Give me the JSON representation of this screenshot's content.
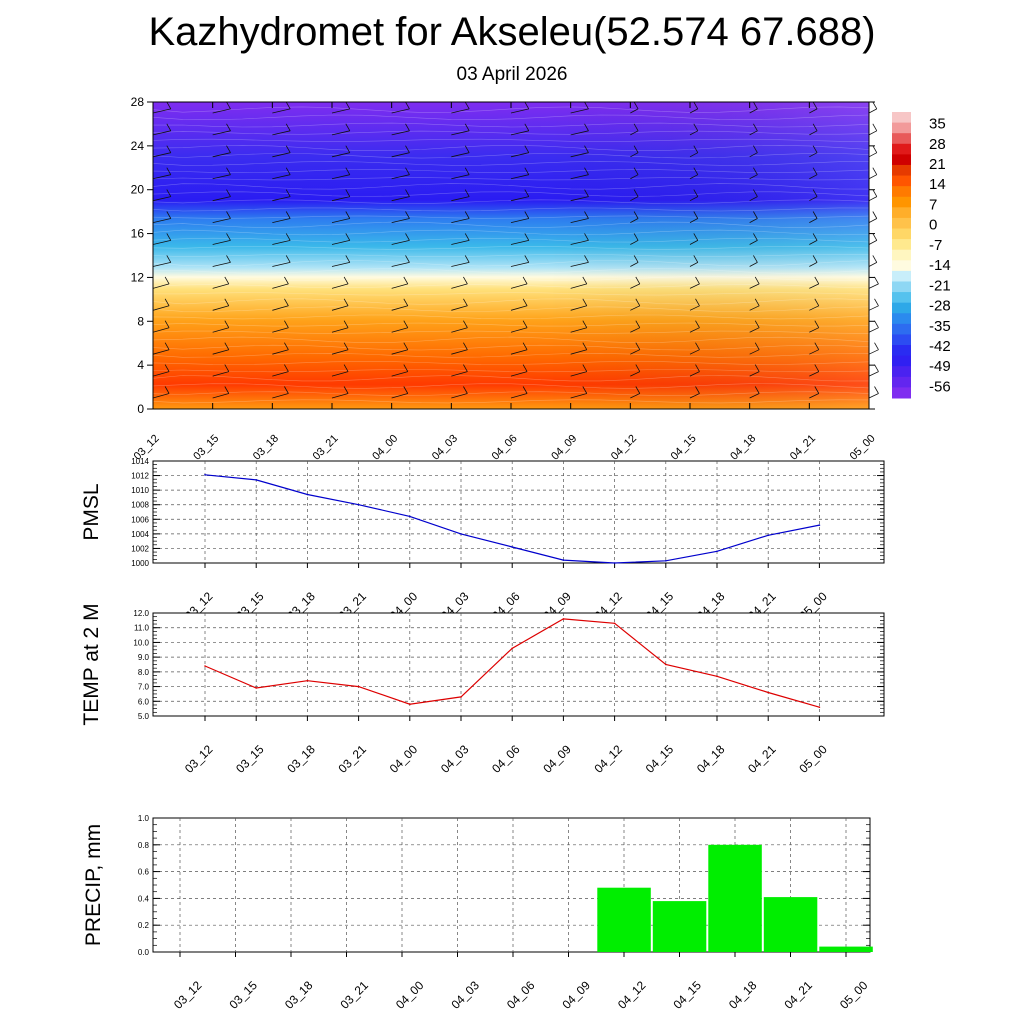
{
  "title": "Kazhydromet for Akseleu(52.574 67.688)",
  "subtitle": "03 April 2026",
  "chart_data": [
    {
      "type": "heatmap",
      "panel": "cross-section",
      "x": [
        "03_12",
        "03_15",
        "03_18",
        "03_21",
        "04_00",
        "04_03",
        "04_06",
        "04_09",
        "04_12",
        "04_15",
        "04_18",
        "04_21",
        "05_00"
      ],
      "y_ticks": [
        0,
        4,
        8,
        12,
        16,
        20,
        24,
        28
      ],
      "ylim": [
        0,
        28
      ],
      "colorbar_labels": [
        "35",
        "28",
        "21",
        "14",
        "7",
        "0",
        "-7",
        "-14",
        "-21",
        "-28",
        "-35",
        "-42",
        "-49",
        "-56"
      ],
      "colorbar_range": [
        -60,
        39
      ],
      "colors": {
        "warm_max": "#ff2a00",
        "warm": "#ff8c00",
        "orange": "#ffa31a",
        "yellow": "#ffd966",
        "pale": "#fffbe0",
        "light_blue": "#a9e0f5",
        "cyan": "#3ab8ea",
        "blue": "#2d7cf0",
        "deep_blue": "#2a1cf2",
        "violet": "#7f2df0"
      }
    },
    {
      "type": "line",
      "panel": "pmsl",
      "ylabel": "PMSL",
      "x": [
        "03_12",
        "03_15",
        "03_18",
        "03_21",
        "04_00",
        "04_03",
        "04_06",
        "04_09",
        "04_12",
        "04_15",
        "04_18",
        "04_21",
        "05_00"
      ],
      "values": [
        1012.1,
        1011.4,
        1009.4,
        1008.0,
        1006.4,
        1004.0,
        1002.2,
        1000.4,
        1000.0,
        1000.3,
        1001.6,
        1003.8,
        1005.2
      ],
      "ylim": [
        1000,
        1014
      ],
      "y_ticks": [
        "1000",
        "1002",
        "1004",
        "1006",
        "1008",
        "1010",
        "1012",
        "1014"
      ],
      "color": "#0000cc",
      "grid": true
    },
    {
      "type": "line",
      "panel": "temp2m",
      "ylabel": "TEMP at 2 M",
      "x": [
        "03_12",
        "03_15",
        "03_18",
        "03_21",
        "04_00",
        "04_03",
        "04_06",
        "04_09",
        "04_12",
        "04_15",
        "04_18",
        "04_21",
        "05_00"
      ],
      "values": [
        8.4,
        6.9,
        7.4,
        7.0,
        5.8,
        6.3,
        9.6,
        11.6,
        11.3,
        8.5,
        7.7,
        6.6,
        5.6
      ],
      "ylim": [
        5.0,
        12.0
      ],
      "y_ticks": [
        "5.0",
        "6.0",
        "7.0",
        "8.0",
        "9.0",
        "10.0",
        "11.0",
        "12.0"
      ],
      "color": "#dd0000",
      "grid": true
    },
    {
      "type": "bar",
      "panel": "precip",
      "ylabel": "PRECIP, mm",
      "categories": [
        "03_12",
        "03_15",
        "03_18",
        "03_21",
        "04_00",
        "04_03",
        "04_06",
        "04_09",
        "04_12",
        "04_15",
        "04_18",
        "04_21",
        "05_00"
      ],
      "values": [
        0,
        0,
        0,
        0,
        0,
        0,
        0,
        0,
        0.48,
        0.38,
        0.8,
        0.41,
        0.04
      ],
      "ylim": [
        0.0,
        1.0
      ],
      "y_ticks": [
        "0.0",
        "0.2",
        "0.4",
        "0.6",
        "0.8",
        "1.0"
      ],
      "color": "#00ee00",
      "grid": true
    }
  ]
}
